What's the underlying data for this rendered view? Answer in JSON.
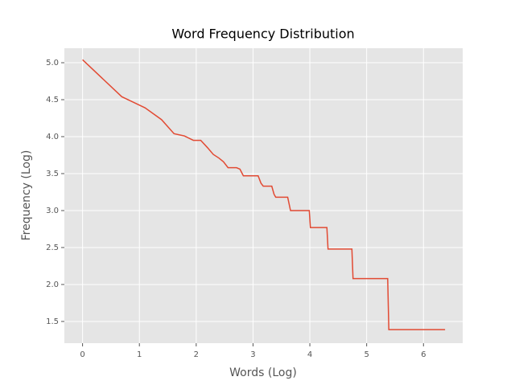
{
  "chart_data": {
    "type": "line",
    "title": "Word Frequency Distribution",
    "x_label": "Words (Log)",
    "y_label": "Frequency (Log)",
    "x": [
      0,
      0.69,
      1.1,
      1.39,
      1.61,
      1.79,
      1.95,
      2.08,
      2.2,
      2.3,
      2.4,
      2.48,
      2.56,
      2.64,
      2.71,
      2.77,
      2.83,
      3.09,
      3.14,
      3.18,
      3.33,
      3.37,
      3.4,
      3.61,
      3.66,
      3.99,
      4.01,
      4.3,
      4.32,
      4.74,
      4.76,
      5.37,
      5.39,
      6.38
    ],
    "series": [
      {
        "name": "Frequency",
        "color": "#e24a33",
        "values": [
          5.04,
          4.54,
          4.39,
          4.23,
          4.04,
          4.01,
          3.95,
          3.95,
          3.85,
          3.76,
          3.71,
          3.66,
          3.58,
          3.58,
          3.58,
          3.56,
          3.47,
          3.47,
          3.37,
          3.33,
          3.33,
          3.22,
          3.18,
          3.18,
          3.0,
          3.0,
          2.77,
          2.77,
          2.48,
          2.48,
          2.08,
          2.08,
          1.39,
          1.39
        ]
      }
    ],
    "xlim": [
      -0.32,
      6.69
    ],
    "ylim": [
      1.206,
      5.196
    ],
    "xticks": [
      0,
      1,
      2,
      3,
      4,
      5,
      6
    ],
    "yticks": [
      1.5,
      {
        "value": 2,
        "label": "2.0"
      },
      2.5,
      {
        "value": 3,
        "label": "3.0"
      },
      3.5,
      {
        "value": 4,
        "label": "4.0"
      },
      4.5,
      {
        "value": 5,
        "label": "5.0"
      }
    ],
    "grid": true
  }
}
